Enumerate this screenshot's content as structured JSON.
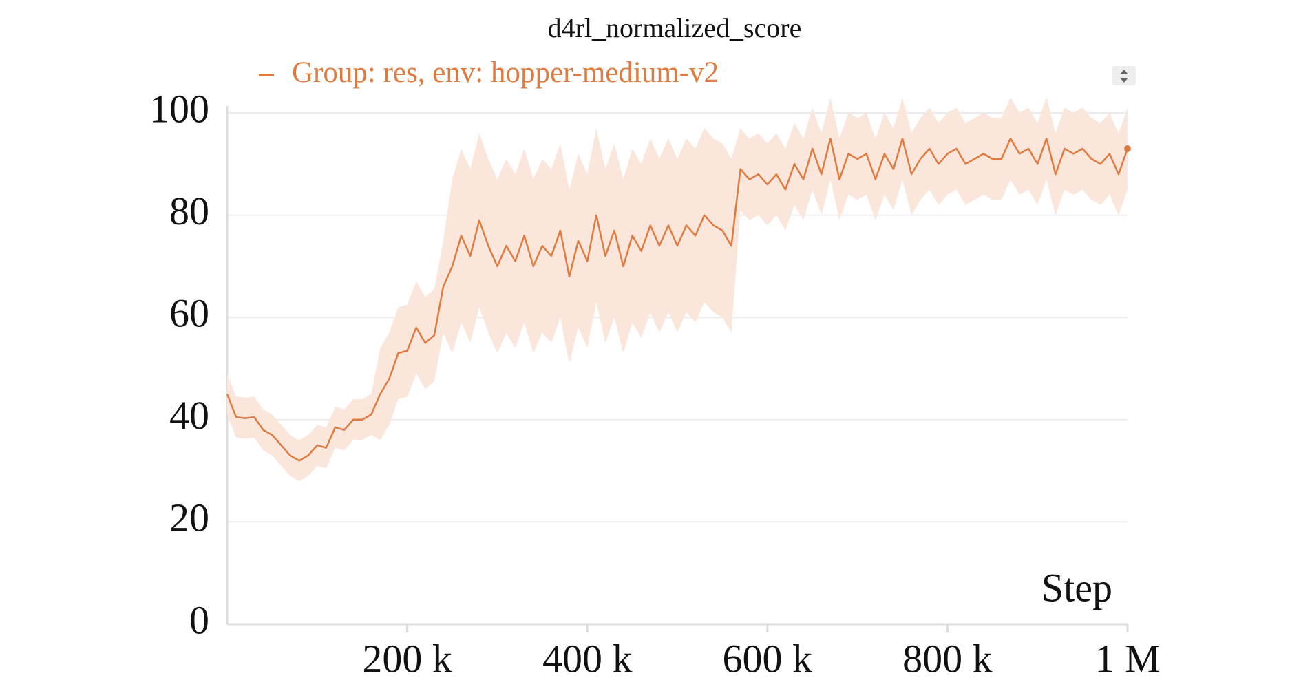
{
  "chart_data": {
    "type": "line",
    "title": "d4rl_normalized_score",
    "xlabel": "Step",
    "grid": true,
    "xlim": [
      0,
      1000000
    ],
    "ylim": [
      0,
      100
    ],
    "xticks": [
      {
        "value": 200000,
        "label": "200 k"
      },
      {
        "value": 400000,
        "label": "400 k"
      },
      {
        "value": 600000,
        "label": "600 k"
      },
      {
        "value": 800000,
        "label": "800 k"
      },
      {
        "value": 1000000,
        "label": "1 M"
      }
    ],
    "yticks": [
      0,
      20,
      40,
      60,
      80,
      100
    ],
    "x": [
      0,
      10000,
      20000,
      30000,
      40000,
      50000,
      60000,
      70000,
      80000,
      90000,
      100000,
      110000,
      120000,
      130000,
      140000,
      150000,
      160000,
      170000,
      180000,
      190000,
      200000,
      210000,
      220000,
      230000,
      240000,
      250000,
      260000,
      270000,
      280000,
      290000,
      300000,
      310000,
      320000,
      330000,
      340000,
      350000,
      360000,
      370000,
      380000,
      390000,
      400000,
      410000,
      420000,
      430000,
      440000,
      450000,
      460000,
      470000,
      480000,
      490000,
      500000,
      510000,
      520000,
      530000,
      540000,
      550000,
      560000,
      570000,
      580000,
      590000,
      600000,
      610000,
      620000,
      630000,
      640000,
      650000,
      660000,
      670000,
      680000,
      690000,
      700000,
      710000,
      720000,
      730000,
      740000,
      750000,
      760000,
      770000,
      780000,
      790000,
      800000,
      810000,
      820000,
      830000,
      840000,
      850000,
      860000,
      870000,
      880000,
      890000,
      900000,
      910000,
      920000,
      930000,
      940000,
      950000,
      960000,
      970000,
      980000,
      990000,
      1000000
    ],
    "series": [
      {
        "name": "Group: res, env: hopper-medium-v2",
        "color": "#e07b3f",
        "band_color": "#fbe6dc",
        "values": [
          45,
          40.5,
          40.3,
          40.5,
          38,
          37,
          35,
          33,
          32,
          33,
          35,
          34.5,
          38.5,
          38,
          40,
          40,
          41,
          45,
          48,
          53,
          53.5,
          58,
          55,
          56.5,
          66,
          70,
          76,
          72,
          79,
          74,
          70,
          74,
          71,
          76,
          70,
          74,
          72,
          77,
          68,
          75,
          71,
          80,
          72,
          77,
          70,
          76,
          73,
          78,
          74,
          78,
          74,
          78,
          76,
          80,
          78,
          77,
          74,
          89,
          87,
          88,
          86,
          88,
          85,
          90,
          87,
          93,
          88,
          95,
          87,
          92,
          91,
          92,
          87,
          92,
          89,
          95,
          88,
          91,
          93,
          90,
          92,
          93,
          90,
          91,
          92,
          91,
          91,
          95,
          92,
          93,
          90,
          95,
          88,
          93,
          92,
          93,
          91,
          90,
          92,
          88,
          93
        ],
        "lower": [
          41,
          36.5,
          36.3,
          36.5,
          34,
          33,
          31,
          29,
          28,
          29,
          31,
          30.5,
          34.5,
          34,
          36,
          36,
          37,
          36,
          39,
          44,
          44.5,
          49,
          46,
          47.5,
          57,
          53,
          59,
          55,
          62,
          57,
          53,
          57,
          54,
          59,
          53,
          57,
          55,
          60,
          51,
          58,
          54,
          63,
          55,
          60,
          53,
          59,
          56,
          61,
          57,
          61,
          57,
          61,
          59,
          63,
          61,
          60,
          57,
          81,
          79,
          80,
          78,
          80,
          77,
          82,
          79,
          85,
          80,
          87,
          79,
          84,
          83,
          84,
          79,
          84,
          81,
          87,
          80,
          83,
          85,
          82,
          84,
          85,
          82,
          83,
          84,
          83,
          83,
          87,
          84,
          85,
          82,
          87,
          80,
          85,
          84,
          85,
          83,
          82,
          84,
          80,
          85
        ],
        "upper": [
          49,
          44.5,
          44.3,
          44.5,
          42,
          41,
          39,
          37,
          36,
          37,
          39,
          38.5,
          42.5,
          42,
          44,
          44,
          45,
          54,
          57,
          62,
          62.5,
          67,
          64,
          65.5,
          75,
          87,
          93,
          89,
          96,
          91,
          87,
          91,
          88,
          93,
          87,
          91,
          89,
          94,
          85,
          92,
          88,
          97,
          89,
          94,
          87,
          93,
          90,
          95,
          91,
          95,
          91,
          95,
          93,
          97,
          95,
          94,
          91,
          97,
          95,
          96,
          94,
          96,
          93,
          98,
          95,
          101,
          96,
          103,
          95,
          100,
          99,
          100,
          95,
          100,
          97,
          103,
          96,
          99,
          101,
          98,
          100,
          101,
          98,
          99,
          100,
          99,
          99,
          103,
          100,
          101,
          98,
          103,
          96,
          101,
          100,
          101,
          99,
          98,
          100,
          96,
          101
        ]
      }
    ]
  }
}
